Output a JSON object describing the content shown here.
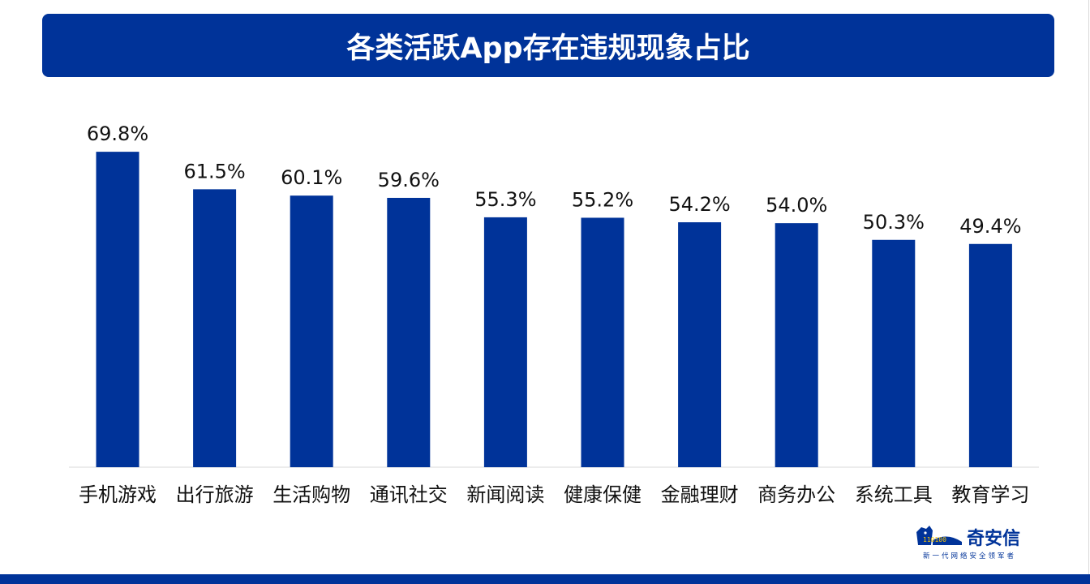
{
  "title": "各类活跃App存在违规现象占比",
  "colors": {
    "bar": "#003399",
    "banner": "#003399",
    "text": "#111111",
    "axis": "#d9d9d9"
  },
  "chart_data": {
    "type": "bar",
    "title": "各类活跃App存在违规现象占比",
    "categories": [
      "手机游戏",
      "出行旅游",
      "生活购物",
      "通讯社交",
      "新闻阅读",
      "健康保健",
      "金融理财",
      "商务办公",
      "系统工具",
      "教育学习"
    ],
    "values": [
      69.8,
      61.5,
      60.1,
      59.6,
      55.3,
      55.2,
      54.2,
      54.0,
      50.3,
      49.4
    ],
    "labels": [
      "69.8%",
      "61.5%",
      "60.1%",
      "59.6%",
      "55.3%",
      "55.2%",
      "54.2%",
      "54.0%",
      "50.3%",
      "49.4%"
    ],
    "ylim": [
      0,
      70
    ],
    "grid": false,
    "legend": "none"
  },
  "logo": {
    "name": "奇安信",
    "slogan": "新一代网络安全领军者",
    "mark_text": "110100",
    "icon": "tiger-logo-icon"
  }
}
